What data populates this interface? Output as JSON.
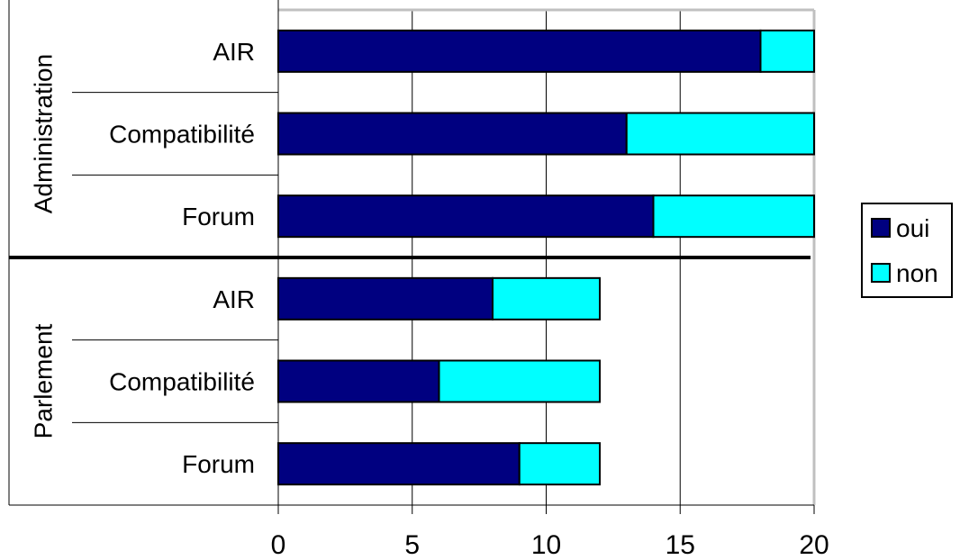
{
  "chart_data": {
    "type": "bar",
    "orientation": "horizontal",
    "stacked": true,
    "groups": [
      {
        "name": "Administration",
        "categories": [
          "AIR",
          "Compatibilité",
          "Forum"
        ],
        "series": [
          {
            "name": "oui",
            "values": [
              18,
              13,
              14
            ]
          },
          {
            "name": "non",
            "values": [
              2,
              7,
              6
            ]
          }
        ]
      },
      {
        "name": "Parlement",
        "categories": [
          "AIR",
          "Compatibilité",
          "Forum"
        ],
        "series": [
          {
            "name": "oui",
            "values": [
              8,
              6,
              9
            ]
          },
          {
            "name": "non",
            "values": [
              4,
              6,
              3
            ]
          }
        ]
      }
    ],
    "xlim": [
      0,
      20
    ],
    "xticks": [
      "0",
      "5",
      "10",
      "15",
      "20"
    ],
    "grid": true,
    "legend_position": "right",
    "colors": {
      "oui": "#000080",
      "non": "#00FFFF"
    }
  }
}
